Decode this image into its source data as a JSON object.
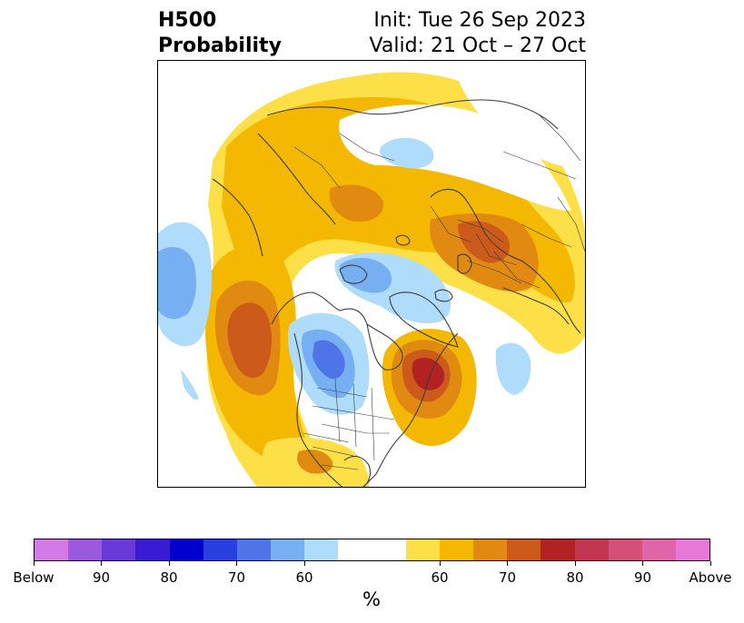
{
  "title": {
    "line1_left": "H500",
    "line2_left": "Probability",
    "line1_right": "Init: Tue 26 Sep 2023",
    "line2_right": "Valid: 21 Oct – 27 Oct"
  },
  "map": {
    "projection": "north-polar-stereographic",
    "variable": "500 hPa geopotential height tercile probability",
    "coastline_color": "#3c3c3c"
  },
  "colorbar": {
    "unit_label": "%",
    "colors": [
      "#d37ae6",
      "#9b59e0",
      "#6a3ad8",
      "#3a1bd4",
      "#0000cc",
      "#2a3fe0",
      "#4f74e8",
      "#76b0f2",
      "#aedcfa",
      "#ffffff",
      "#ffffff",
      "#fde047",
      "#f4b800",
      "#e08a12",
      "#cc5a1a",
      "#b22222",
      "#c23650",
      "#d4507a",
      "#e064a8",
      "#e879d8"
    ],
    "tick_labels": [
      "Below",
      "90",
      "80",
      "70",
      "60",
      "60",
      "70",
      "80",
      "90",
      "Above"
    ],
    "tick_index": [
      0,
      2,
      4,
      6,
      8,
      12,
      14,
      16,
      18,
      20
    ]
  }
}
